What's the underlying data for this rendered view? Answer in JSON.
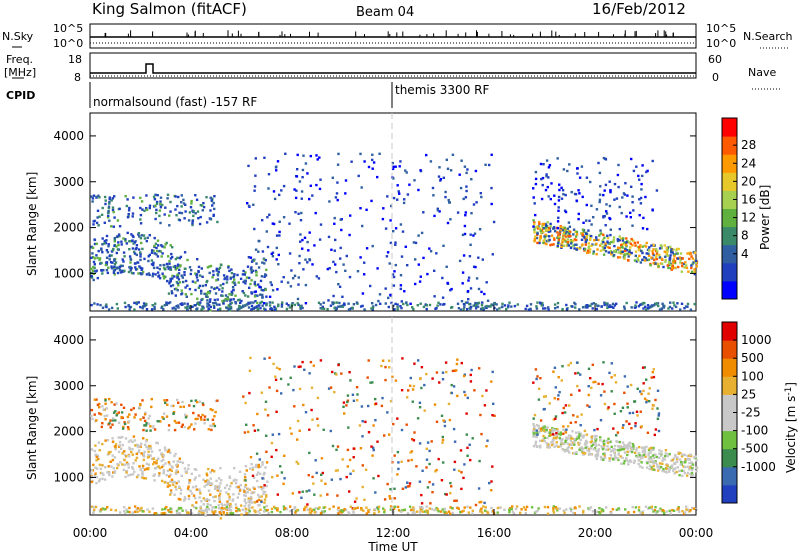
{
  "header": {
    "station": "King Salmon (fitACF)",
    "beam": "Beam 04",
    "date": "16/Feb/2012"
  },
  "noise_panel": {
    "left_label": "N.Sky",
    "right_label": "N.Search",
    "left_ticks": [
      "10^5",
      "10^0"
    ],
    "right_ticks": [
      "10^5",
      "10^0"
    ]
  },
  "freq_panel": {
    "left_label_1": "Freq.",
    "left_label_2": "[MHz]",
    "right_label": "Nave",
    "left_ticks": [
      "18",
      "8"
    ],
    "right_ticks": [
      "60",
      "0"
    ]
  },
  "cpid": {
    "label": "CPID",
    "segments": [
      {
        "start_hour": 0,
        "text": "normalsound (fast) -157 RF"
      },
      {
        "start_hour": 12,
        "text": "themis 3300 RF"
      }
    ]
  },
  "chart_data": [
    {
      "type": "heatmap",
      "title": "Power",
      "ylabel": "Slant Range [km]",
      "ylim": [
        180,
        4500
      ],
      "yticks": [
        "4000",
        "3000",
        "2000",
        "1000"
      ],
      "xlim": [
        0,
        24
      ],
      "xticks": [
        "00:00",
        "04:00",
        "08:00",
        "12:00",
        "16:00",
        "20:00",
        "00:00"
      ],
      "colorbar": {
        "label": "Power [dB]",
        "ticks": [
          "28",
          "24",
          "20",
          "16",
          "12",
          "8",
          "4"
        ],
        "colors": [
          "#0000ff",
          "#1f3fbf",
          "#2f5fa0",
          "#3a8a6a",
          "#60b040",
          "#a8d050",
          "#e6c82a",
          "#ff9900",
          "#ff5a00",
          "#ff0000"
        ]
      },
      "features": [
        {
          "hours": [
            0,
            7
          ],
          "range_km": [
            700,
            2400
          ],
          "level_db": [
            8,
            16
          ]
        },
        {
          "hours": [
            0,
            24
          ],
          "range_km": [
            180,
            300
          ],
          "level_db": [
            4,
            12
          ]
        },
        {
          "hours": [
            18,
            24
          ],
          "range_km": [
            900,
            2600
          ],
          "level_db": [
            10,
            24
          ]
        }
      ]
    },
    {
      "type": "heatmap",
      "title": "Velocity",
      "ylabel": "Slant Range [km]",
      "ylim": [
        180,
        4500
      ],
      "yticks": [
        "4000",
        "3000",
        "2000",
        "1000"
      ],
      "xlim": [
        0,
        24
      ],
      "xticks": [
        "00:00",
        "04:00",
        "08:00",
        "12:00",
        "16:00",
        "20:00",
        "00:00"
      ],
      "xlabel": "Time UT",
      "colorbar": {
        "label": "Velocity [m s",
        "label_sup": "-1",
        "label_end": "]",
        "ticks": [
          "1000",
          "500",
          "100",
          "25",
          "-25",
          "-100",
          "-500",
          "-1000"
        ],
        "colors": [
          "#2040c0",
          "#3a6ab0",
          "#3c8c50",
          "#70c040",
          "#c8c8c8",
          "#c8c8c8",
          "#e8b030",
          "#f08c00",
          "#e85000",
          "#e00000"
        ]
      },
      "features": [
        {
          "hours": [
            0,
            7
          ],
          "range_km": [
            700,
            2400
          ],
          "velocity_ms": [
            -100,
            25
          ]
        },
        {
          "hours": [
            18,
            24
          ],
          "range_km": [
            900,
            2600
          ],
          "velocity_ms": [
            -25,
            25
          ]
        }
      ]
    }
  ]
}
